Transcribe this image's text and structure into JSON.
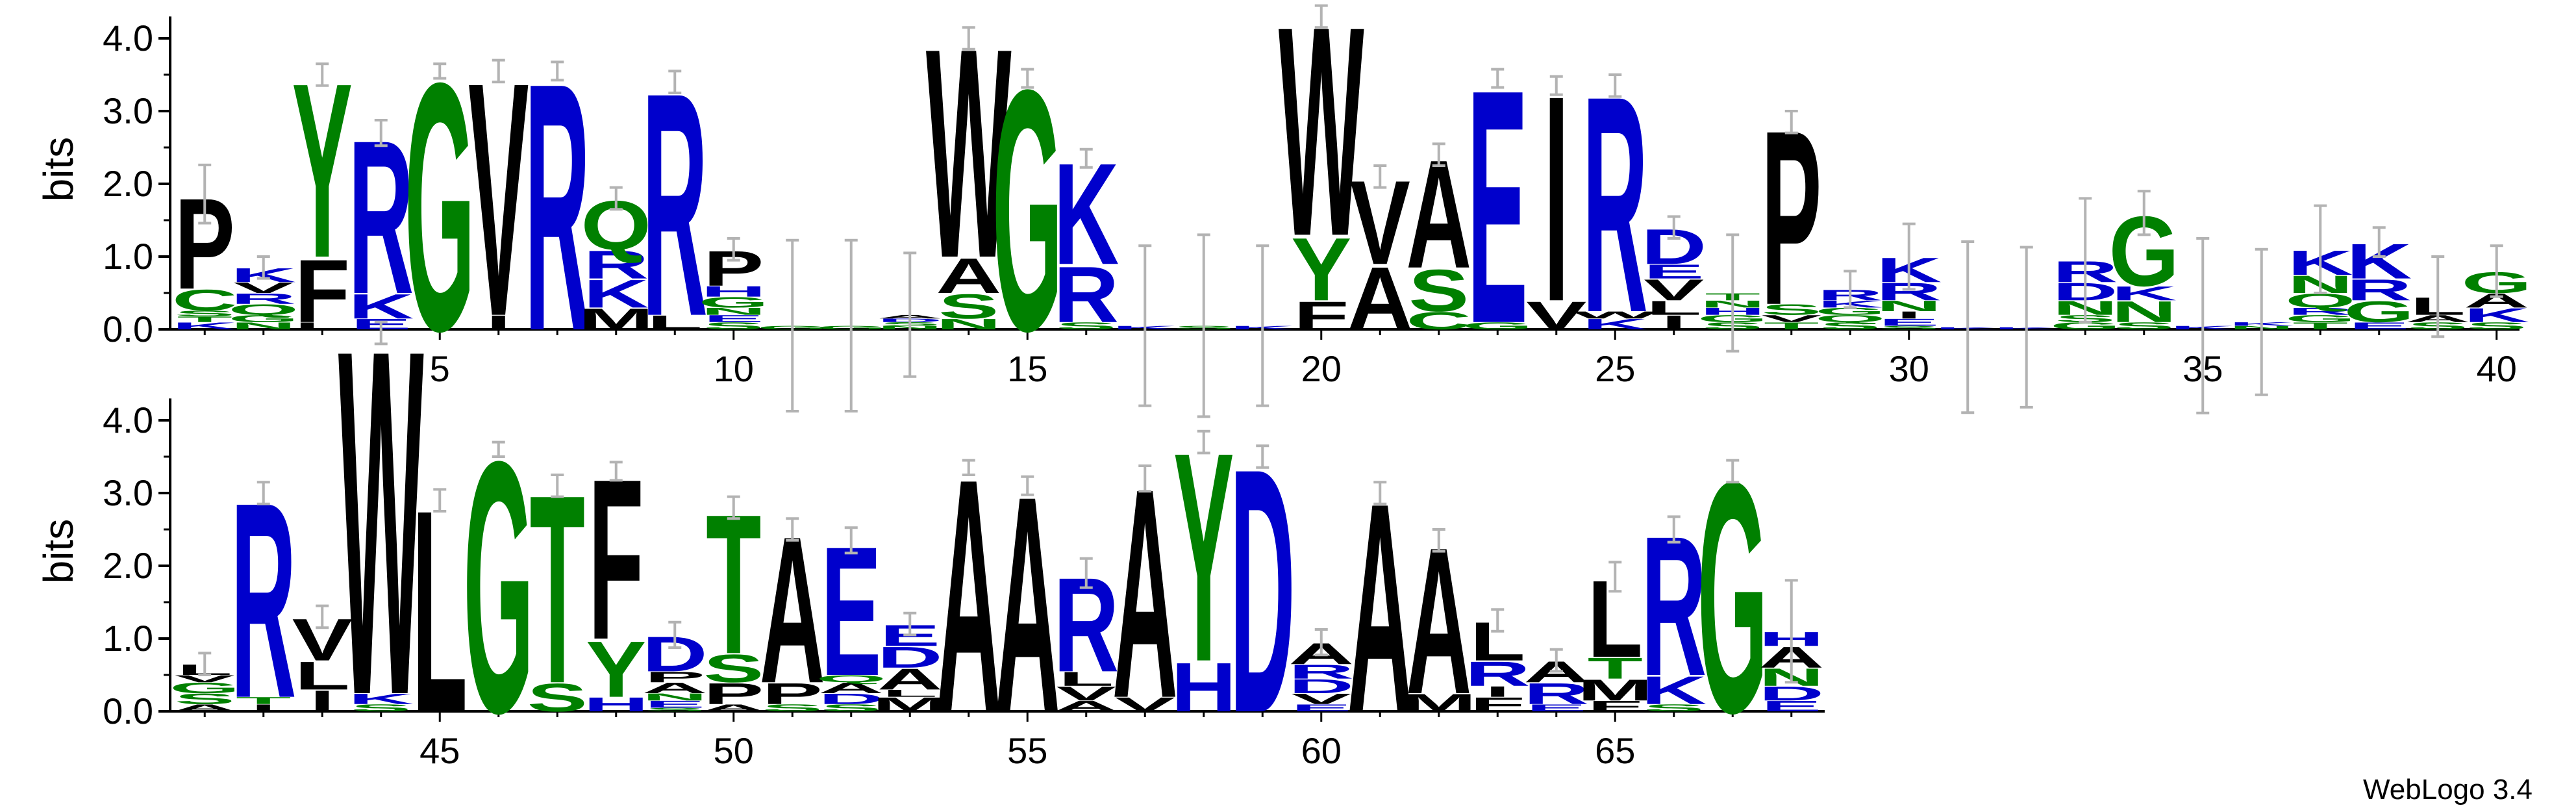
{
  "chart_data": {
    "type": "sequence-logo",
    "ylabel": "bits",
    "ylim": [
      0,
      4.3
    ],
    "yticks": [
      "0.0",
      "1.0",
      "2.0",
      "3.0",
      "4.0"
    ],
    "xticks_row1": [
      5,
      10,
      15,
      20,
      25,
      30,
      35,
      40
    ],
    "xticks_row2": [
      45,
      50,
      55,
      60,
      65
    ],
    "credit": "WebLogo 3.4",
    "colors": {
      "green": "#008000",
      "blue": "#0000cc",
      "black": "#000000"
    },
    "positions": [
      {
        "pos": 1,
        "err": 0.8,
        "stack": [
          [
            "K",
            0.1
          ],
          [
            "T",
            0.08
          ],
          [
            "S",
            0.08
          ],
          [
            "C",
            0.3
          ],
          [
            "P",
            1.3
          ]
        ]
      },
      {
        "pos": 2,
        "err": 0.3,
        "stack": [
          [
            "N",
            0.1
          ],
          [
            "G",
            0.1
          ],
          [
            "Q",
            0.15
          ],
          [
            "R",
            0.15
          ],
          [
            "V",
            0.15
          ],
          [
            "K",
            0.2
          ]
        ]
      },
      {
        "pos": 3,
        "err": 0.3,
        "stack": [
          [
            "L",
            0.1
          ],
          [
            "F",
            0.9
          ],
          [
            "Y",
            2.5
          ]
        ]
      },
      {
        "pos": 4,
        "err": 0.35,
        "stack": [
          [
            "E",
            0.15
          ],
          [
            "K",
            0.35
          ],
          [
            "R",
            2.2
          ]
        ]
      },
      {
        "pos": 5,
        "err": 0.2,
        "stack": [
          [
            "G",
            3.55
          ]
        ]
      },
      {
        "pos": 6,
        "err": 0.3,
        "stack": [
          [
            "I",
            0.2
          ],
          [
            "V",
            3.35
          ]
        ]
      },
      {
        "pos": 7,
        "err": 0.25,
        "stack": [
          [
            "R",
            3.55
          ]
        ]
      },
      {
        "pos": 8,
        "err": 0.3,
        "stack": [
          [
            "M",
            0.3
          ],
          [
            "K",
            0.4
          ],
          [
            "R",
            0.4
          ],
          [
            "Q",
            0.7
          ]
        ]
      },
      {
        "pos": 9,
        "err": 0.3,
        "stack": [
          [
            "L",
            0.2
          ],
          [
            "R",
            3.2
          ]
        ]
      },
      {
        "pos": 10,
        "err": 0.3,
        "stack": [
          [
            "S",
            0.1
          ],
          [
            "E",
            0.1
          ],
          [
            "N",
            0.1
          ],
          [
            "G",
            0.15
          ],
          [
            "H",
            0.15
          ],
          [
            "P",
            0.5
          ]
        ]
      },
      {
        "pos": 11,
        "err": 2.35,
        "stack": [
          [
            "G",
            0.05
          ]
        ]
      },
      {
        "pos": 12,
        "err": 2.35,
        "stack": [
          [
            "G",
            0.05
          ]
        ]
      },
      {
        "pos": 13,
        "err": 1.7,
        "stack": [
          [
            "N",
            0.05
          ],
          [
            "S",
            0.05
          ],
          [
            "D",
            0.05
          ],
          [
            "A",
            0.05
          ]
        ]
      },
      {
        "pos": 14,
        "err": 0.3,
        "stack": [
          [
            "N",
            0.15
          ],
          [
            "S",
            0.35
          ],
          [
            "A",
            0.5
          ],
          [
            "W",
            3.0
          ]
        ]
      },
      {
        "pos": 15,
        "err": 0.25,
        "stack": [
          [
            "G",
            3.45
          ]
        ]
      },
      {
        "pos": 16,
        "err": 0.25,
        "stack": [
          [
            "S",
            0.1
          ],
          [
            "R",
            0.8
          ],
          [
            "K",
            1.45
          ]
        ]
      },
      {
        "pos": 17,
        "err": 2.2,
        "stack": [
          [
            "K",
            0.05
          ]
        ]
      },
      {
        "pos": 18,
        "err": 2.5,
        "stack": [
          [
            "S",
            0.05
          ]
        ]
      },
      {
        "pos": 19,
        "err": 2.2,
        "stack": [
          [
            "K",
            0.05
          ]
        ]
      },
      {
        "pos": 20,
        "err": 0.3,
        "stack": [
          [
            "F",
            0.4
          ],
          [
            "Y",
            0.9
          ],
          [
            "W",
            3.0
          ]
        ]
      },
      {
        "pos": 21,
        "err": 0.3,
        "stack": [
          [
            "A",
            0.9
          ],
          [
            "V",
            1.2
          ]
        ]
      },
      {
        "pos": 22,
        "err": 0.3,
        "stack": [
          [
            "C",
            0.25
          ],
          [
            "S",
            0.6
          ],
          [
            "A",
            1.55
          ]
        ]
      },
      {
        "pos": 23,
        "err": 0.25,
        "stack": [
          [
            "G",
            0.1
          ],
          [
            "E",
            3.35
          ]
        ]
      },
      {
        "pos": 24,
        "err": 0.25,
        "stack": [
          [
            "V",
            0.4
          ],
          [
            "I",
            2.95
          ]
        ]
      },
      {
        "pos": 25,
        "err": 0.3,
        "stack": [
          [
            "K",
            0.15
          ],
          [
            "W",
            0.1
          ],
          [
            "R",
            3.1
          ]
        ]
      },
      {
        "pos": 26,
        "err": 0.3,
        "stack": [
          [
            "I",
            0.2
          ],
          [
            "L",
            0.2
          ],
          [
            "V",
            0.3
          ],
          [
            "E",
            0.2
          ],
          [
            "D",
            0.5
          ]
        ]
      },
      {
        "pos": 27,
        "err": 1.6,
        "stack": [
          [
            "S",
            0.1
          ],
          [
            "G",
            0.1
          ],
          [
            "H",
            0.1
          ],
          [
            "N",
            0.1
          ],
          [
            "T",
            0.1
          ]
        ]
      },
      {
        "pos": 28,
        "err": 0.3,
        "stack": [
          [
            "T",
            0.1
          ],
          [
            "V",
            0.1
          ],
          [
            "S",
            0.15
          ],
          [
            "P",
            2.5
          ]
        ]
      },
      {
        "pos": 29,
        "err": 0.5,
        "stack": [
          [
            "S",
            0.1
          ],
          [
            "Q",
            0.1
          ],
          [
            "G",
            0.1
          ],
          [
            "K",
            0.1
          ],
          [
            "R",
            0.15
          ]
        ]
      },
      {
        "pos": 30,
        "err": 0.9,
        "stack": [
          [
            "S",
            0.05
          ],
          [
            "E",
            0.1
          ],
          [
            "I",
            0.1
          ],
          [
            "N",
            0.15
          ],
          [
            "R",
            0.25
          ],
          [
            "K",
            0.35
          ]
        ]
      },
      {
        "pos": 31,
        "err": 2.35,
        "stack": [
          [
            "K",
            0.03
          ]
        ]
      },
      {
        "pos": 32,
        "err": 2.2,
        "stack": [
          [
            "K",
            0.03
          ]
        ]
      },
      {
        "pos": 33,
        "err": 1.7,
        "stack": [
          [
            "G",
            0.1
          ],
          [
            "S",
            0.1
          ],
          [
            "N",
            0.2
          ],
          [
            "D",
            0.25
          ],
          [
            "R",
            0.3
          ]
        ]
      },
      {
        "pos": 34,
        "err": 0.6,
        "stack": [
          [
            "S",
            0.1
          ],
          [
            "N",
            0.3
          ],
          [
            "K",
            0.2
          ],
          [
            "G",
            1.0
          ]
        ]
      },
      {
        "pos": 35,
        "err": 2.4,
        "stack": [
          [
            "K",
            0.05
          ]
        ]
      },
      {
        "pos": 36,
        "err": 2.0,
        "stack": [
          [
            "N",
            0.05
          ],
          [
            "K",
            0.05
          ]
        ]
      },
      {
        "pos": 37,
        "err": 1.2,
        "stack": [
          [
            "T",
            0.1
          ],
          [
            "G",
            0.1
          ],
          [
            "R",
            0.1
          ],
          [
            "Q",
            0.2
          ],
          [
            "N",
            0.25
          ],
          [
            "K",
            0.35
          ]
        ]
      },
      {
        "pos": 38,
        "err": 0.4,
        "stack": [
          [
            "E",
            0.1
          ],
          [
            "G",
            0.3
          ],
          [
            "R",
            0.3
          ],
          [
            "K",
            0.5
          ]
        ]
      },
      {
        "pos": 39,
        "err": 1.1,
        "stack": [
          [
            "S",
            0.1
          ],
          [
            "A",
            0.1
          ],
          [
            "L",
            0.25
          ]
        ]
      },
      {
        "pos": 40,
        "err": 0.7,
        "stack": [
          [
            "S",
            0.1
          ],
          [
            "K",
            0.2
          ],
          [
            "A",
            0.2
          ],
          [
            "G",
            0.3
          ]
        ]
      },
      {
        "pos": 41,
        "err": 0.3,
        "stack": [
          [
            "A",
            0.1
          ],
          [
            "S",
            0.15
          ],
          [
            "G",
            0.15
          ],
          [
            "V",
            0.1
          ],
          [
            "L",
            0.15
          ]
        ]
      },
      {
        "pos": 42,
        "err": 0.3,
        "stack": [
          [
            "I",
            0.1
          ],
          [
            "T",
            0.1
          ],
          [
            "R",
            2.8
          ]
        ]
      },
      {
        "pos": 43,
        "err": 0.3,
        "stack": [
          [
            "I",
            0.3
          ],
          [
            "L",
            0.4
          ],
          [
            "V",
            0.6
          ]
        ]
      },
      {
        "pos": 44,
        "err": 0.3,
        "stack": [
          [
            "S",
            0.1
          ],
          [
            "K",
            0.15
          ],
          [
            "W",
            4.95
          ]
        ]
      },
      {
        "pos": 45,
        "err": 0.3,
        "stack": [
          [
            "L",
            2.9
          ]
        ]
      },
      {
        "pos": 46,
        "err": 0.2,
        "stack": [
          [
            "G",
            3.6
          ]
        ]
      },
      {
        "pos": 47,
        "err": 0.3,
        "stack": [
          [
            "S",
            0.4
          ],
          [
            "T",
            2.7
          ]
        ]
      },
      {
        "pos": 48,
        "err": 0.25,
        "stack": [
          [
            "H",
            0.2
          ],
          [
            "Y",
            0.8
          ],
          [
            "F",
            2.3
          ]
        ]
      },
      {
        "pos": 49,
        "err": 0.35,
        "stack": [
          [
            "S",
            0.05
          ],
          [
            "E",
            0.1
          ],
          [
            "N",
            0.1
          ],
          [
            "A",
            0.15
          ],
          [
            "P",
            0.15
          ],
          [
            "D",
            0.5
          ]
        ]
      },
      {
        "pos": 50,
        "err": 0.3,
        "stack": [
          [
            "A",
            0.1
          ],
          [
            "P",
            0.3
          ],
          [
            "S",
            0.4
          ],
          [
            "T",
            2.0
          ]
        ]
      },
      {
        "pos": 51,
        "err": 0.3,
        "stack": [
          [
            "S",
            0.1
          ],
          [
            "P",
            0.3
          ],
          [
            "A",
            2.1
          ]
        ]
      },
      {
        "pos": 52,
        "err": 0.35,
        "stack": [
          [
            "S",
            0.1
          ],
          [
            "D",
            0.15
          ],
          [
            "A",
            0.15
          ],
          [
            "Q",
            0.1
          ],
          [
            "E",
            1.85
          ]
        ]
      },
      {
        "pos": 53,
        "err": 0.3,
        "stack": [
          [
            "M",
            0.2
          ],
          [
            "L",
            0.1
          ],
          [
            "A",
            0.3
          ],
          [
            "D",
            0.3
          ],
          [
            "E",
            0.3
          ]
        ]
      },
      {
        "pos": 54,
        "err": 0.2,
        "stack": [
          [
            "A",
            3.35
          ]
        ]
      },
      {
        "pos": 55,
        "err": 0.25,
        "stack": [
          [
            "A",
            3.1
          ]
        ]
      },
      {
        "pos": 56,
        "err": 0.4,
        "stack": [
          [
            "A",
            0.15
          ],
          [
            "V",
            0.2
          ],
          [
            "L",
            0.2
          ],
          [
            "R",
            1.35
          ]
        ]
      },
      {
        "pos": 57,
        "err": 0.35,
        "stack": [
          [
            "V",
            0.2
          ],
          [
            "A",
            3.0
          ]
        ]
      },
      {
        "pos": 58,
        "err": 0.3,
        "stack": [
          [
            "H",
            0.7
          ],
          [
            "Y",
            3.0
          ]
        ]
      },
      {
        "pos": 59,
        "err": 0.3,
        "stack": [
          [
            "D",
            3.5
          ]
        ]
      },
      {
        "pos": 60,
        "err": 0.35,
        "stack": [
          [
            "E",
            0.1
          ],
          [
            "V",
            0.15
          ],
          [
            "D",
            0.2
          ],
          [
            "R",
            0.2
          ],
          [
            "A",
            0.3
          ]
        ]
      },
      {
        "pos": 61,
        "err": 0.3,
        "stack": [
          [
            "A",
            3.0
          ]
        ]
      },
      {
        "pos": 62,
        "err": 0.3,
        "stack": [
          [
            "M",
            0.25
          ],
          [
            "A",
            2.1
          ]
        ]
      },
      {
        "pos": 63,
        "err": 0.3,
        "stack": [
          [
            "F",
            0.2
          ],
          [
            "I",
            0.15
          ],
          [
            "R",
            0.35
          ],
          [
            "L",
            0.55
          ]
        ]
      },
      {
        "pos": 64,
        "err": 0.3,
        "stack": [
          [
            "E",
            0.1
          ],
          [
            "R",
            0.3
          ],
          [
            "A",
            0.3
          ]
        ]
      },
      {
        "pos": 65,
        "err": 0.4,
        "stack": [
          [
            "F",
            0.15
          ],
          [
            "M",
            0.3
          ],
          [
            "T",
            0.3
          ],
          [
            "L",
            1.1
          ]
        ]
      },
      {
        "pos": 66,
        "err": 0.35,
        "stack": [
          [
            "S",
            0.1
          ],
          [
            "K",
            0.4
          ],
          [
            "R",
            2.0
          ]
        ]
      },
      {
        "pos": 67,
        "err": 0.3,
        "stack": [
          [
            "G",
            3.3
          ]
        ]
      },
      {
        "pos": 68,
        "err": 1.4,
        "stack": [
          [
            "E",
            0.15
          ],
          [
            "D",
            0.2
          ],
          [
            "N",
            0.25
          ],
          [
            "A",
            0.3
          ],
          [
            "H",
            0.2
          ]
        ]
      }
    ]
  }
}
